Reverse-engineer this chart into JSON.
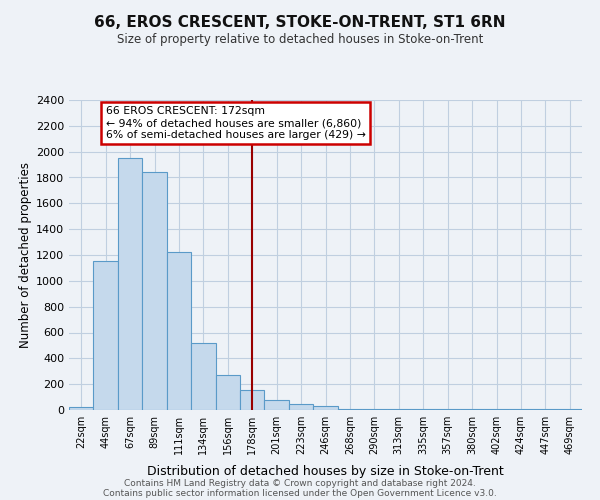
{
  "title": "66, EROS CRESCENT, STOKE-ON-TRENT, ST1 6RN",
  "subtitle": "Size of property relative to detached houses in Stoke-on-Trent",
  "xlabel": "Distribution of detached houses by size in Stoke-on-Trent",
  "ylabel": "Number of detached properties",
  "bin_labels": [
    "22sqm",
    "44sqm",
    "67sqm",
    "89sqm",
    "111sqm",
    "134sqm",
    "156sqm",
    "178sqm",
    "201sqm",
    "223sqm",
    "246sqm",
    "268sqm",
    "290sqm",
    "313sqm",
    "335sqm",
    "357sqm",
    "380sqm",
    "402sqm",
    "424sqm",
    "447sqm",
    "469sqm"
  ],
  "bar_heights": [
    25,
    1150,
    1950,
    1840,
    1220,
    520,
    270,
    155,
    80,
    45,
    30,
    10,
    10,
    5,
    5,
    5,
    5,
    5,
    5,
    5,
    5
  ],
  "bar_color": "#c5d9ec",
  "bar_edge_color": "#5a9ac8",
  "vline_x_idx": 7,
  "vline_color": "#990000",
  "annotation_title": "66 EROS CRESCENT: 172sqm",
  "annotation_line1": "← 94% of detached houses are smaller (6,860)",
  "annotation_line2": "6% of semi-detached houses are larger (429) →",
  "annotation_box_edge": "#cc0000",
  "ylim": [
    0,
    2400
  ],
  "yticks": [
    0,
    200,
    400,
    600,
    800,
    1000,
    1200,
    1400,
    1600,
    1800,
    2000,
    2200,
    2400
  ],
  "footer1": "Contains HM Land Registry data © Crown copyright and database right 2024.",
  "footer2": "Contains public sector information licensed under the Open Government Licence v3.0.",
  "bg_color": "#eef2f7",
  "plot_bg_color": "#eef2f7",
  "grid_color": "#c0cfe0"
}
